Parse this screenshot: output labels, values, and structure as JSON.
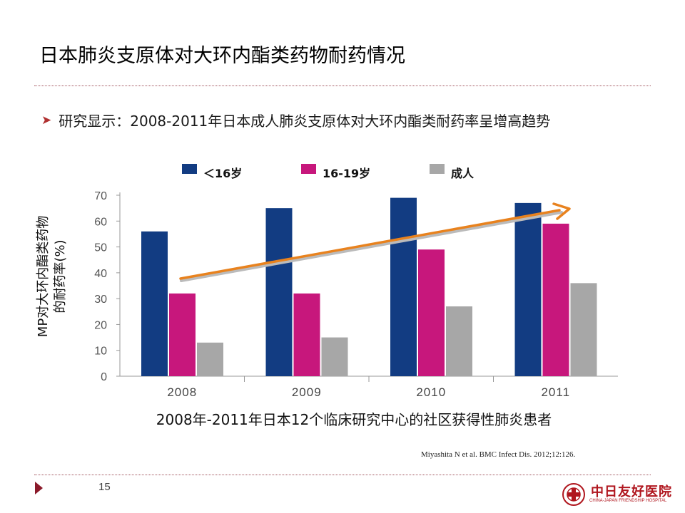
{
  "slide": {
    "title": "日本肺炎支原体对大环内酯类药物耐药情况",
    "bullet": "研究显示：2008-2011年日本成人肺炎支原体对大环内酯类耐药率呈增高趋势",
    "citation": "Miyashita N  et al. BMC Infect Dis. 2012;12:126.",
    "page_number": "15",
    "hospital_name": "中日友好医院",
    "hospital_name_en": "CHINA-JAPAN FRIENDSHIP HOSPITAL"
  },
  "colors": {
    "series_under16": "#123c82",
    "series_16_19": "#c7177c",
    "series_adult": "#a7a7a7",
    "trend_arrow": "#e8821e",
    "accent": "#8b1a2a"
  },
  "chart_data": {
    "type": "bar",
    "categories": [
      "2008",
      "2009",
      "2010",
      "2011"
    ],
    "series": [
      {
        "name": "＜16岁",
        "values": [
          56,
          65,
          69,
          67
        ]
      },
      {
        "name": "16-19岁",
        "values": [
          32,
          32,
          49,
          59
        ]
      },
      {
        "name": "成人",
        "values": [
          13,
          15,
          27,
          36
        ]
      }
    ],
    "xlabel": "2008年-2011年日本12个临床研究中心的社区获得性肺炎患者",
    "ylabel": "MP对大环内酯类药物的耐药率(%)",
    "ylim": [
      0,
      70
    ],
    "yticks": [
      0,
      10,
      20,
      30,
      40,
      50,
      60,
      70
    ],
    "grid": false,
    "legend": "top",
    "annotations": [
      "upward trend arrow across years"
    ]
  }
}
